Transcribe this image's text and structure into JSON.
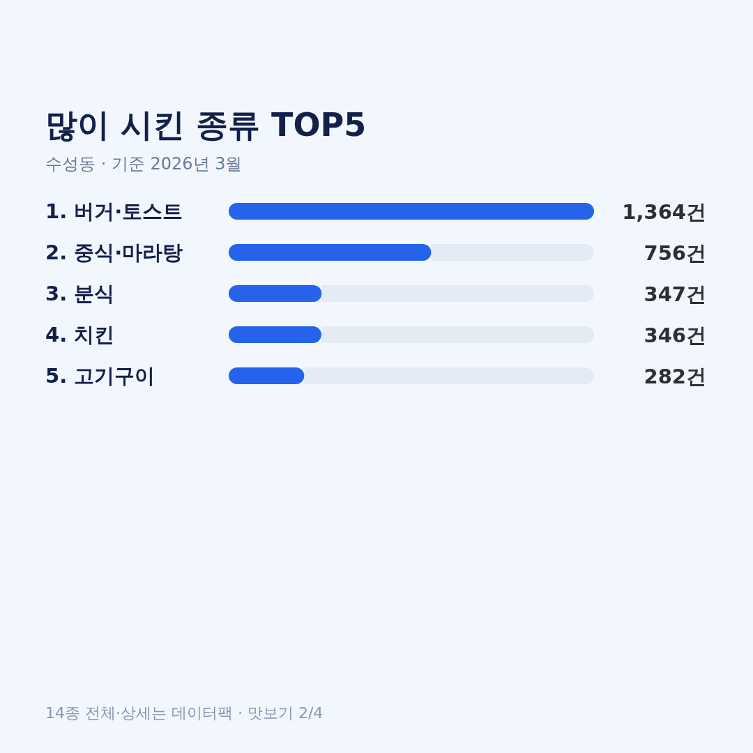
{
  "chart_data": {
    "type": "bar",
    "orientation": "horizontal",
    "title": "많이 시킨 종류 TOP5",
    "subtitle": "수성동 · 기준 2026년 3월",
    "categories": [
      "1. 버거·토스트",
      "2. 중식·마라탕",
      "3. 분식",
      "4. 치킨",
      "5. 고기구이"
    ],
    "values": [
      1364,
      756,
      347,
      346,
      282
    ],
    "value_labels": [
      "1,364건",
      "756건",
      "347건",
      "346건",
      "282건"
    ],
    "color": "#2563eb",
    "annotations": [
      "14종 전체·상세는 데이터팩 · 맛보기 2/4"
    ]
  }
}
